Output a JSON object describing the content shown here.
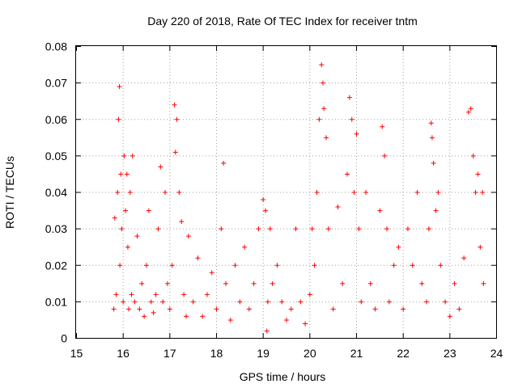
{
  "chart_data": {
    "type": "scatter",
    "title": "Day 220 of 2018, Rate Of TEC Index for receiver tntm",
    "xlabel": "GPS time / hours",
    "ylabel": "ROTI / TECUs",
    "xlim": [
      15,
      24
    ],
    "ylim": [
      0,
      0.08
    ],
    "x_ticks": [
      "15",
      "16",
      "17",
      "18",
      "19",
      "20",
      "21",
      "22",
      "23",
      "24"
    ],
    "y_ticks": [
      "0",
      "0.01",
      "0.02",
      "0.03",
      "0.04",
      "0.05",
      "0.06",
      "0.07",
      "0.08"
    ],
    "grid": true,
    "marker": "+",
    "marker_color": "#ff0000",
    "series": [
      {
        "name": "ROTI",
        "x": [
          15.8,
          15.82,
          15.85,
          15.88,
          15.9,
          15.92,
          15.93,
          15.95,
          15.97,
          16.0,
          16.02,
          16.05,
          16.08,
          16.1,
          16.12,
          16.15,
          16.18,
          16.2,
          16.25,
          16.3,
          16.35,
          16.4,
          16.45,
          16.5,
          16.55,
          16.6,
          16.65,
          16.7,
          16.75,
          16.8,
          16.85,
          16.9,
          16.95,
          17.0,
          17.05,
          17.1,
          17.12,
          17.15,
          17.2,
          17.25,
          17.3,
          17.35,
          17.4,
          17.5,
          17.6,
          17.7,
          17.8,
          17.9,
          18.0,
          18.1,
          18.15,
          18.2,
          18.3,
          18.4,
          18.5,
          18.6,
          18.7,
          18.8,
          18.9,
          19.0,
          19.05,
          19.08,
          19.1,
          19.15,
          19.2,
          19.3,
          19.4,
          19.5,
          19.6,
          19.7,
          19.8,
          19.9,
          20.0,
          20.05,
          20.1,
          20.15,
          20.2,
          20.25,
          20.28,
          20.3,
          20.35,
          20.4,
          20.5,
          20.6,
          20.7,
          20.8,
          20.85,
          20.9,
          20.95,
          21.0,
          21.05,
          21.1,
          21.2,
          21.3,
          21.4,
          21.5,
          21.55,
          21.6,
          21.65,
          21.7,
          21.8,
          21.9,
          22.0,
          22.1,
          22.2,
          22.3,
          22.4,
          22.5,
          22.55,
          22.6,
          22.62,
          22.65,
          22.7,
          22.75,
          22.8,
          22.9,
          23.0,
          23.1,
          23.2,
          23.3,
          23.4,
          23.45,
          23.5,
          23.55,
          23.6,
          23.65,
          23.7,
          23.72
        ],
        "y": [
          0.008,
          0.033,
          0.012,
          0.04,
          0.06,
          0.069,
          0.02,
          0.045,
          0.03,
          0.01,
          0.05,
          0.035,
          0.045,
          0.025,
          0.008,
          0.04,
          0.012,
          0.05,
          0.01,
          0.028,
          0.008,
          0.015,
          0.006,
          0.02,
          0.035,
          0.01,
          0.007,
          0.012,
          0.03,
          0.047,
          0.01,
          0.04,
          0.015,
          0.008,
          0.02,
          0.064,
          0.051,
          0.06,
          0.04,
          0.032,
          0.012,
          0.006,
          0.028,
          0.01,
          0.022,
          0.006,
          0.012,
          0.018,
          0.008,
          0.03,
          0.048,
          0.015,
          0.005,
          0.02,
          0.01,
          0.025,
          0.008,
          0.015,
          0.03,
          0.038,
          0.035,
          0.002,
          0.01,
          0.03,
          0.015,
          0.02,
          0.01,
          0.005,
          0.008,
          0.03,
          0.01,
          0.004,
          0.012,
          0.03,
          0.02,
          0.04,
          0.06,
          0.075,
          0.07,
          0.063,
          0.055,
          0.03,
          0.008,
          0.036,
          0.015,
          0.045,
          0.066,
          0.06,
          0.04,
          0.056,
          0.03,
          0.01,
          0.04,
          0.015,
          0.008,
          0.035,
          0.058,
          0.05,
          0.03,
          0.01,
          0.02,
          0.025,
          0.008,
          0.03,
          0.02,
          0.04,
          0.015,
          0.01,
          0.03,
          0.059,
          0.055,
          0.048,
          0.035,
          0.04,
          0.02,
          0.01,
          0.006,
          0.015,
          0.008,
          0.022,
          0.062,
          0.063,
          0.05,
          0.04,
          0.045,
          0.025,
          0.04,
          0.015
        ]
      }
    ]
  }
}
